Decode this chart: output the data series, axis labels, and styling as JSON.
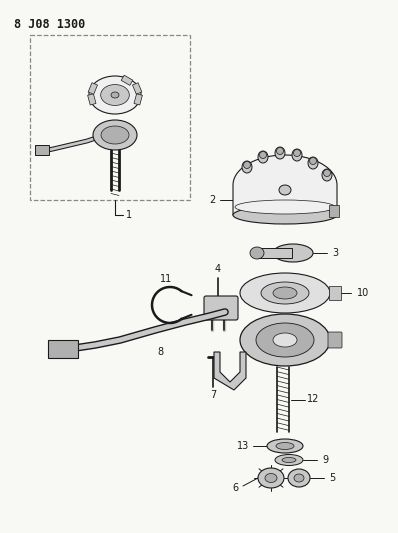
{
  "title": "8 J08 1300",
  "bg_color": "#f8f8f5",
  "line_color": "#1a1a1a",
  "gray1": "#c8c8c8",
  "gray2": "#b0b0b0",
  "gray3": "#e0e0e0",
  "white": "#f0f0f0"
}
